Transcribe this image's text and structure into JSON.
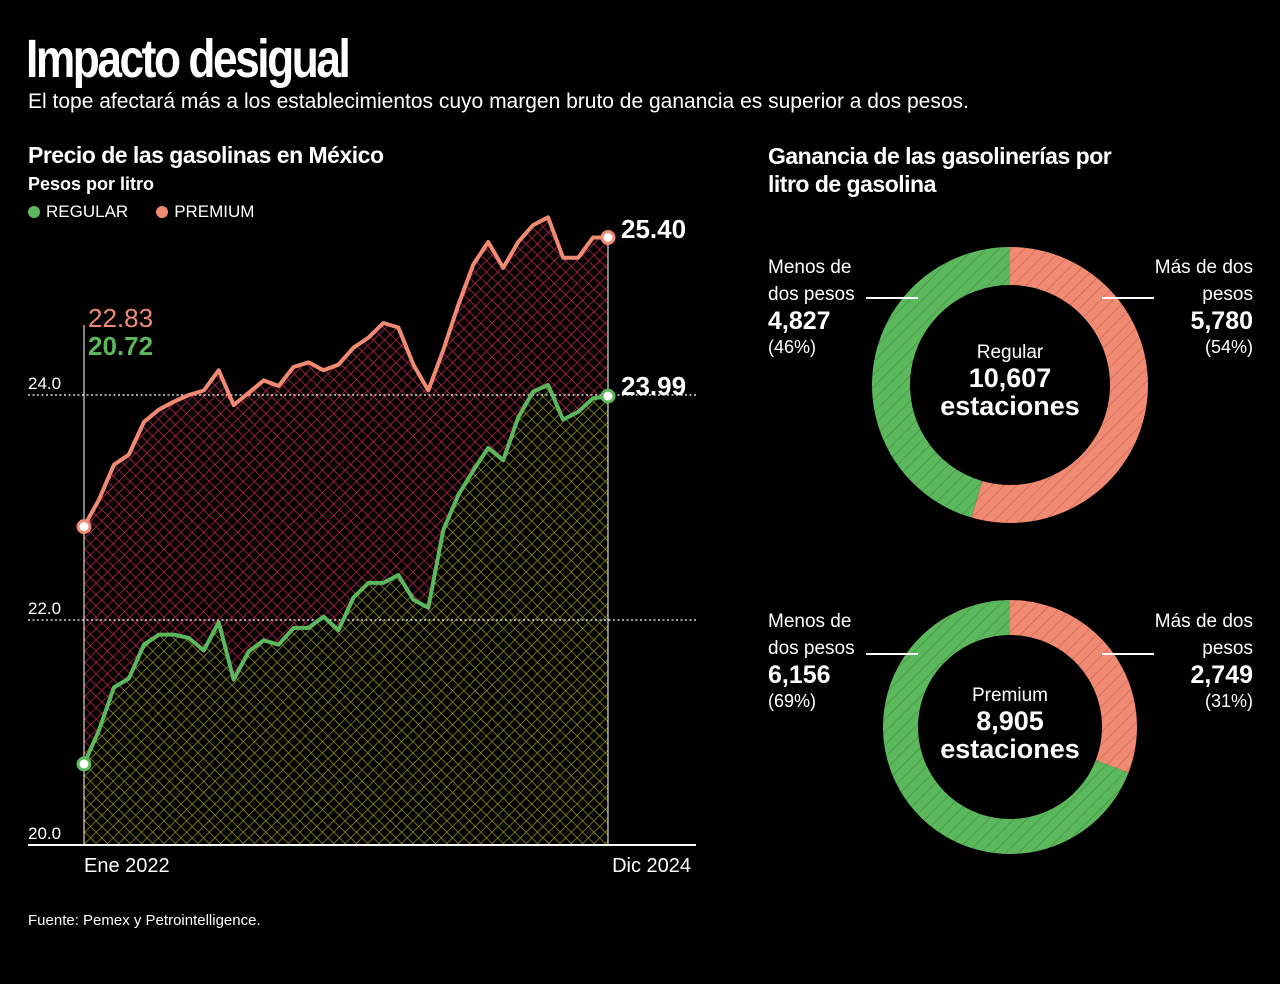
{
  "title": "Impacto desigual",
  "subtitle": "El tope afectará más a los establecimientos cuyo margen bruto de ganancia es superior a dos pesos.",
  "source": "Fuente: Pemex y Petrointelligence.",
  "colors": {
    "regular": "#5cb85c",
    "premium": "#f08a72",
    "premium_fill": "#b8244a",
    "regular_fill": "#8a8a1e"
  },
  "chart_data": [
    {
      "type": "area",
      "title": "Precio de las gasolinas en México",
      "ylabel": "Pesos por litro",
      "ylim": [
        20.0,
        25.8
      ],
      "yticks": [
        "20.0",
        "22.0",
        "24.0"
      ],
      "ytick_values": [
        20.0,
        22.0,
        24.0
      ],
      "grid": "dotted at 22.0 and 24.0",
      "x_labels": [
        "Ene 2022",
        "Dic 2024"
      ],
      "x_period": "monthly, Ene 2022 – Dic 2024",
      "legend": {
        "placement": "top-left",
        "items": [
          "REGULAR",
          "PREMIUM"
        ]
      },
      "series": [
        {
          "name": "PREMIUM",
          "start_label": "22.83",
          "end_label": "25.40",
          "values": [
            22.83,
            23.07,
            23.38,
            23.47,
            23.76,
            23.87,
            23.94,
            24.0,
            24.04,
            24.22,
            23.91,
            24.02,
            24.13,
            24.08,
            24.25,
            24.29,
            24.22,
            24.27,
            24.42,
            24.51,
            24.64,
            24.6,
            24.27,
            24.04,
            24.4,
            24.8,
            25.16,
            25.36,
            25.13,
            25.36,
            25.51,
            25.58,
            25.22,
            25.22,
            25.4,
            25.4
          ]
        },
        {
          "name": "REGULAR",
          "start_label": "20.72",
          "end_label": "23.99",
          "values": [
            20.72,
            21.02,
            21.4,
            21.48,
            21.78,
            21.87,
            21.87,
            21.84,
            21.73,
            21.98,
            21.47,
            21.72,
            21.82,
            21.78,
            21.93,
            21.93,
            22.03,
            21.91,
            22.2,
            22.33,
            22.33,
            22.4,
            22.18,
            22.11,
            22.8,
            23.11,
            23.33,
            23.53,
            23.42,
            23.8,
            24.03,
            24.09,
            23.78,
            23.85,
            23.97,
            23.99
          ]
        }
      ]
    },
    {
      "type": "pie",
      "title": "Ganancia de las gasolinerías por litro de gasolina",
      "donuts": [
        {
          "name": "Regular",
          "total": "10,607",
          "unit": "estaciones",
          "slices": [
            {
              "label": "Menos de dos pesos",
              "value": 4827,
              "value_label": "4,827",
              "pct": 46,
              "pct_label": "(46%)",
              "color": "#5cb85c"
            },
            {
              "label": "Más de dos pesos",
              "value": 5780,
              "value_label": "5,780",
              "pct": 54,
              "pct_label": "(54%)",
              "color": "#f08a72"
            }
          ]
        },
        {
          "name": "Premium",
          "total": "8,905",
          "unit": "estaciones",
          "slices": [
            {
              "label": "Menos de dos pesos",
              "value": 6156,
              "value_label": "6,156",
              "pct": 69,
              "pct_label": "(69%)",
              "color": "#5cb85c"
            },
            {
              "label": "Más de dos pesos",
              "value": 2749,
              "value_label": "2,749",
              "pct": 31,
              "pct_label": "(31%)",
              "color": "#f08a72"
            }
          ]
        }
      ]
    }
  ]
}
